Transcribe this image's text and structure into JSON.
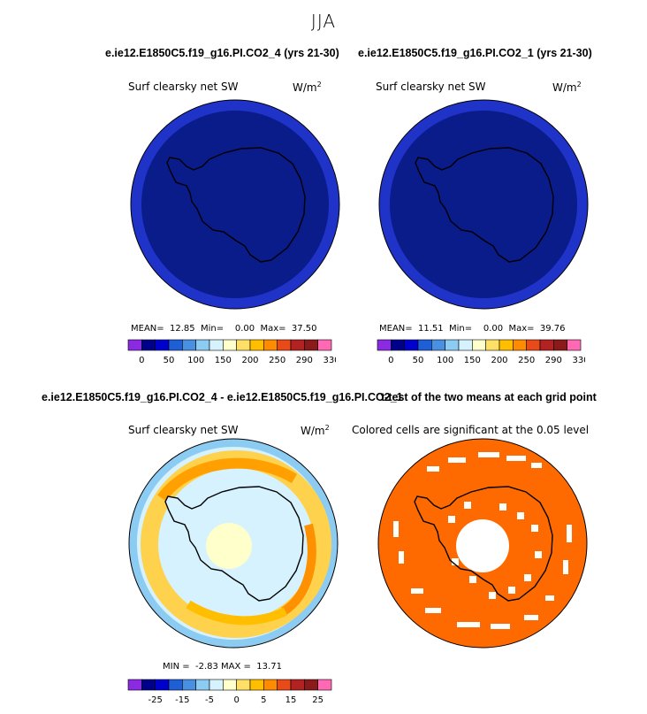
{
  "season": "JJA",
  "case_a": "e.ie12.E1850C5.f19_g16.PI.CO2_4 (yrs 21-30)",
  "case_b": "e.ie12.E1850C5.f19_g16.PI.CO2_1 (yrs 21-30)",
  "diff_title": "e.ie12.E1850C5.f19_g16.PI.CO2_4 - e.ie12.E1850C5.f19_g16.PI.CO2_1",
  "ttest_title": "t-test of the two means at each grid point",
  "colors": {
    "full_scale": [
      "#8a2be2",
      "#00008b",
      "#0000cd",
      "#1e5fd6",
      "#4a90e2",
      "#8ccbf2",
      "#d6f2ff",
      "#ffffcc",
      "#ffe066",
      "#ffbf00",
      "#ff8c00",
      "#e84a1a",
      "#b22222",
      "#8b1a1a",
      "#ff69b4"
    ],
    "diff_scale": [
      "#8a2be2",
      "#00008b",
      "#0000cd",
      "#1e5fd6",
      "#4a90e2",
      "#8ccbf2",
      "#d6f2ff",
      "#ffffcc",
      "#ffe066",
      "#ffbf00",
      "#ff8c00",
      "#e84a1a",
      "#b22222",
      "#8b1a1a",
      "#ff69b4"
    ],
    "significant": "#ff6a00"
  },
  "chart_data": [
    {
      "type": "heatmap",
      "title": "Surf clearsky net SW",
      "units": "W/m",
      "units_exp": "2",
      "stats": {
        "mean": "12.85",
        "min": "0.00",
        "max": "37.50"
      },
      "stat_labels": {
        "mean": "MEAN=",
        "min": "Min=",
        "max": "Max="
      },
      "colorbar_ticks": [
        "0",
        "50",
        "100",
        "150",
        "200",
        "250",
        "290",
        "330"
      ]
    },
    {
      "type": "heatmap",
      "title": "Surf clearsky net SW",
      "units": "W/m",
      "units_exp": "2",
      "stats": {
        "mean": "11.51",
        "min": "0.00",
        "max": "39.76"
      },
      "stat_labels": {
        "mean": "MEAN=",
        "min": "Min=",
        "max": "Max="
      },
      "colorbar_ticks": [
        "0",
        "50",
        "100",
        "150",
        "200",
        "250",
        "290",
        "330"
      ]
    },
    {
      "type": "heatmap",
      "title": "Surf clearsky net SW",
      "units": "W/m",
      "units_exp": "2",
      "stats": {
        "min": "-2.83",
        "max": "13.71"
      },
      "stat_labels": {
        "min": "MIN =",
        "max": "MAX ="
      },
      "colorbar_ticks": [
        "-25",
        "-15",
        "-5",
        "0",
        "5",
        "15",
        "25"
      ]
    },
    {
      "type": "heatmap",
      "title": "Colored cells are significant at the 0.05 level"
    }
  ]
}
